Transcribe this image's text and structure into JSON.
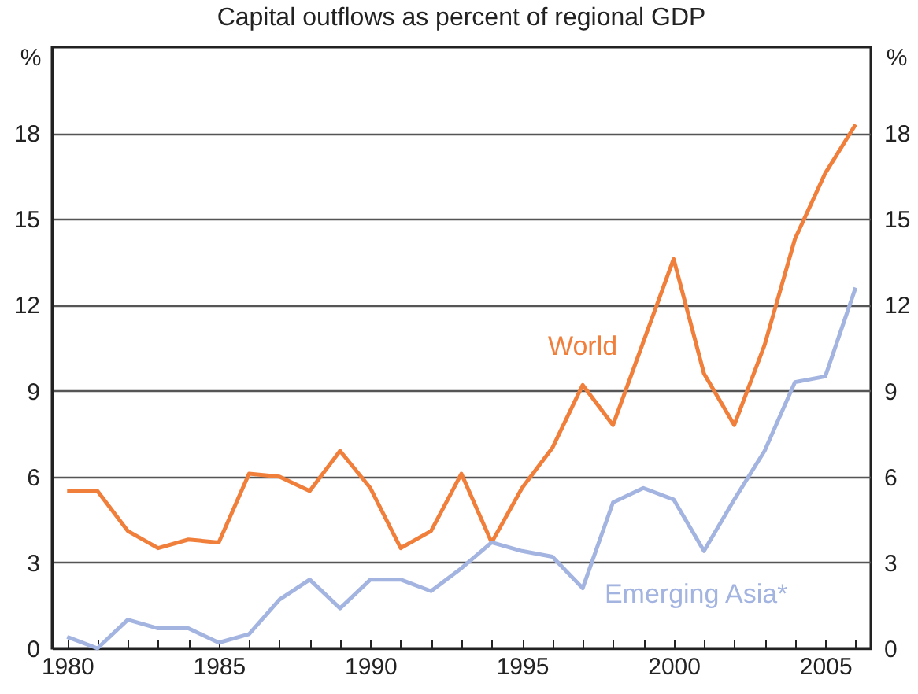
{
  "chart_data": {
    "type": "line",
    "title": "Capital outflows as percent of regional GDP",
    "ylabel": "%",
    "y2label": "%",
    "x": [
      1980,
      1981,
      1982,
      1983,
      1984,
      1985,
      1986,
      1987,
      1988,
      1989,
      1990,
      1991,
      1992,
      1993,
      1994,
      1995,
      1996,
      1997,
      1998,
      1999,
      2000,
      2001,
      2002,
      2003,
      2004,
      2005,
      2006
    ],
    "series": [
      {
        "name": "World",
        "color": "#f07f3c",
        "values": [
          5.5,
          5.5,
          4.1,
          3.5,
          3.8,
          3.7,
          6.1,
          6.0,
          5.5,
          6.9,
          5.6,
          3.5,
          4.1,
          6.1,
          3.7,
          5.6,
          7.0,
          9.2,
          7.8,
          10.7,
          13.6,
          9.6,
          7.8,
          10.6,
          14.3,
          16.6,
          18.3
        ]
      },
      {
        "name": "Emerging Asia*",
        "color": "#a3b4e0",
        "values": [
          0.4,
          0.0,
          1.0,
          0.7,
          0.7,
          0.2,
          0.5,
          1.7,
          2.4,
          1.4,
          2.4,
          2.4,
          2.0,
          2.8,
          3.7,
          3.4,
          3.2,
          2.1,
          5.1,
          5.6,
          5.2,
          3.4,
          5.2,
          6.9,
          9.3,
          9.5,
          12.6
        ]
      }
    ],
    "xlim": [
      1979.5,
      2006.5
    ],
    "xticks": [
      1980,
      {
        "value": 1981,
        "label": null
      },
      {
        "value": 1982,
        "label": null
      },
      {
        "value": 1983,
        "label": null
      },
      {
        "value": 1984,
        "label": null
      },
      1985,
      {
        "value": 1986,
        "label": null
      },
      {
        "value": 1987,
        "label": null
      },
      {
        "value": 1988,
        "label": null
      },
      {
        "value": 1989,
        "label": null
      },
      1990,
      {
        "value": 1991,
        "label": null
      },
      {
        "value": 1992,
        "label": null
      },
      {
        "value": 1993,
        "label": null
      },
      {
        "value": 1994,
        "label": null
      },
      1995,
      {
        "value": 1996,
        "label": null
      },
      {
        "value": 1997,
        "label": null
      },
      {
        "value": 1998,
        "label": null
      },
      {
        "value": 1999,
        "label": null
      },
      2000,
      {
        "value": 2001,
        "label": null
      },
      {
        "value": 2002,
        "label": null
      },
      {
        "value": 2003,
        "label": null
      },
      {
        "value": 2004,
        "label": null
      },
      2005,
      {
        "value": 2006,
        "label": null
      }
    ],
    "ylim": [
      0,
      21
    ],
    "yticks": [
      0,
      3,
      6,
      9,
      12,
      15,
      18
    ],
    "y2lim": [
      0,
      21
    ],
    "y2ticks": [
      0,
      3,
      6,
      9,
      12,
      15,
      18
    ],
    "grid": "y",
    "marker": "none",
    "line_style": "solid"
  }
}
